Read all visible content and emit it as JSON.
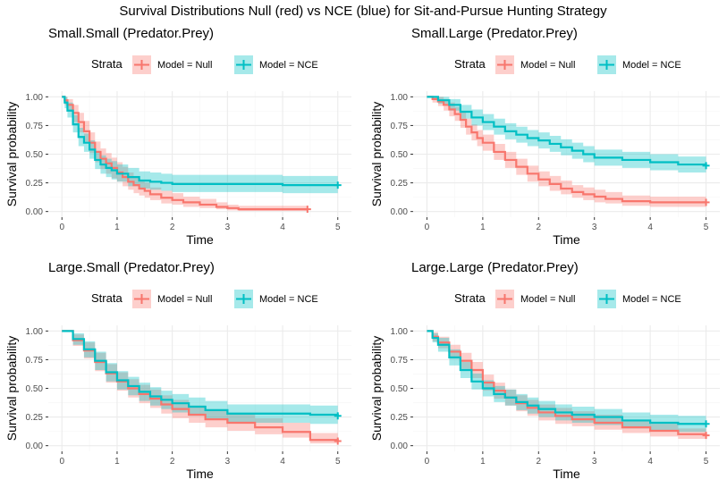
{
  "title": "Survival Distributions Null (red) vs NCE (blue) for Sit-and-Pursue Hunting Strategy",
  "colors": {
    "null": "#F8766D",
    "nce": "#00BFC4",
    "panel_bg": "#ffffff",
    "grid_major": "#EBEBEB",
    "grid_minor": "#F5F5F5"
  },
  "chart_data": [
    {
      "type": "line",
      "title": "Small.Small (Predator.Prey)",
      "xlabel": "Time",
      "ylabel": "Survival probability",
      "legend_title": "Strata",
      "legend_position": "top",
      "grid": true,
      "xlim": [
        0,
        5
      ],
      "ylim": [
        0,
        1
      ],
      "xticks": [
        "0",
        "1",
        "2",
        "3",
        "4",
        "5"
      ],
      "yticks": [
        "0.00",
        "0.25",
        "0.50",
        "0.75",
        "1.00"
      ],
      "series": [
        {
          "name": "Model = Null",
          "color": "#F8766D",
          "x": [
            0,
            0.05,
            0.1,
            0.2,
            0.3,
            0.4,
            0.5,
            0.6,
            0.7,
            0.8,
            0.9,
            1.0,
            1.1,
            1.2,
            1.3,
            1.4,
            1.5,
            1.6,
            1.8,
            2.0,
            2.2,
            2.5,
            2.8,
            3.0,
            3.2,
            3.5,
            4.0,
            4.45
          ],
          "y": [
            1.0,
            0.97,
            0.93,
            0.86,
            0.78,
            0.7,
            0.6,
            0.52,
            0.46,
            0.42,
            0.38,
            0.34,
            0.3,
            0.26,
            0.23,
            0.2,
            0.18,
            0.15,
            0.12,
            0.1,
            0.08,
            0.06,
            0.04,
            0.03,
            0.02,
            0.02,
            0.02,
            0.02
          ],
          "lower": [
            1.0,
            0.93,
            0.87,
            0.78,
            0.69,
            0.61,
            0.51,
            0.43,
            0.37,
            0.33,
            0.29,
            0.26,
            0.22,
            0.19,
            0.16,
            0.14,
            0.12,
            0.1,
            0.07,
            0.06,
            0.04,
            0.03,
            0.02,
            0.01,
            0.005,
            0.005,
            0.005,
            0.005
          ],
          "upper": [
            1.0,
            1.0,
            0.98,
            0.93,
            0.86,
            0.79,
            0.69,
            0.61,
            0.55,
            0.51,
            0.47,
            0.43,
            0.39,
            0.34,
            0.31,
            0.27,
            0.25,
            0.21,
            0.18,
            0.16,
            0.13,
            0.11,
            0.08,
            0.06,
            0.05,
            0.05,
            0.05,
            0.05
          ]
        },
        {
          "name": "Model = NCE",
          "color": "#00BFC4",
          "x": [
            0,
            0.05,
            0.1,
            0.2,
            0.3,
            0.4,
            0.5,
            0.6,
            0.7,
            0.8,
            0.9,
            1.0,
            1.2,
            1.4,
            1.6,
            1.8,
            2.0,
            3.0,
            4.0,
            5.0
          ],
          "y": [
            1.0,
            0.95,
            0.88,
            0.76,
            0.65,
            0.6,
            0.54,
            0.45,
            0.41,
            0.38,
            0.36,
            0.33,
            0.3,
            0.27,
            0.26,
            0.25,
            0.24,
            0.24,
            0.23,
            0.23
          ],
          "lower": [
            1.0,
            0.9,
            0.82,
            0.69,
            0.57,
            0.52,
            0.46,
            0.37,
            0.33,
            0.3,
            0.28,
            0.26,
            0.22,
            0.2,
            0.19,
            0.18,
            0.17,
            0.17,
            0.16,
            0.16
          ],
          "upper": [
            1.0,
            1.0,
            0.95,
            0.84,
            0.73,
            0.68,
            0.62,
            0.53,
            0.49,
            0.46,
            0.44,
            0.41,
            0.38,
            0.35,
            0.34,
            0.33,
            0.32,
            0.32,
            0.31,
            0.31
          ]
        }
      ]
    },
    {
      "type": "line",
      "title": "Small.Large (Predator.Prey)",
      "xlabel": "Time",
      "ylabel": "Survival probability",
      "legend_title": "Strata",
      "legend_position": "top",
      "grid": true,
      "xlim": [
        0,
        5
      ],
      "ylim": [
        0,
        1
      ],
      "xticks": [
        "0",
        "1",
        "2",
        "3",
        "4",
        "5"
      ],
      "yticks": [
        "0.00",
        "0.25",
        "0.50",
        "0.75",
        "1.00"
      ],
      "series": [
        {
          "name": "Model = Null",
          "color": "#F8766D",
          "x": [
            0,
            0.1,
            0.2,
            0.3,
            0.4,
            0.5,
            0.6,
            0.7,
            0.8,
            0.9,
            1.0,
            1.2,
            1.4,
            1.6,
            1.8,
            2.0,
            2.2,
            2.4,
            2.6,
            2.8,
            3.0,
            3.2,
            3.5,
            4.0,
            4.5,
            5.0
          ],
          "y": [
            1.0,
            0.98,
            0.96,
            0.93,
            0.89,
            0.85,
            0.8,
            0.74,
            0.69,
            0.64,
            0.6,
            0.52,
            0.45,
            0.39,
            0.33,
            0.28,
            0.24,
            0.2,
            0.17,
            0.15,
            0.13,
            0.11,
            0.09,
            0.08,
            0.08,
            0.08
          ],
          "lower": [
            1.0,
            0.95,
            0.92,
            0.88,
            0.83,
            0.79,
            0.73,
            0.67,
            0.62,
            0.57,
            0.53,
            0.45,
            0.38,
            0.32,
            0.26,
            0.22,
            0.18,
            0.15,
            0.12,
            0.1,
            0.08,
            0.07,
            0.05,
            0.04,
            0.04,
            0.04
          ],
          "upper": [
            1.0,
            1.0,
            1.0,
            0.98,
            0.95,
            0.91,
            0.87,
            0.81,
            0.76,
            0.71,
            0.67,
            0.59,
            0.52,
            0.46,
            0.4,
            0.35,
            0.31,
            0.27,
            0.23,
            0.21,
            0.19,
            0.17,
            0.14,
            0.13,
            0.13,
            0.13
          ]
        },
        {
          "name": "Model = NCE",
          "color": "#00BFC4",
          "x": [
            0,
            0.2,
            0.4,
            0.6,
            0.8,
            1.0,
            1.2,
            1.4,
            1.6,
            1.8,
            2.0,
            2.2,
            2.4,
            2.6,
            2.8,
            3.0,
            3.5,
            4.0,
            4.5,
            5.0
          ],
          "y": [
            1.0,
            0.97,
            0.93,
            0.87,
            0.82,
            0.78,
            0.74,
            0.7,
            0.67,
            0.64,
            0.62,
            0.59,
            0.56,
            0.53,
            0.5,
            0.47,
            0.45,
            0.43,
            0.41,
            0.4
          ],
          "lower": [
            1.0,
            0.94,
            0.88,
            0.81,
            0.75,
            0.71,
            0.67,
            0.63,
            0.6,
            0.57,
            0.55,
            0.52,
            0.49,
            0.46,
            0.43,
            0.4,
            0.38,
            0.36,
            0.34,
            0.33
          ],
          "upper": [
            1.0,
            1.0,
            0.98,
            0.93,
            0.89,
            0.85,
            0.81,
            0.77,
            0.74,
            0.71,
            0.69,
            0.66,
            0.63,
            0.6,
            0.57,
            0.54,
            0.52,
            0.5,
            0.48,
            0.47
          ]
        }
      ]
    },
    {
      "type": "line",
      "title": "Large.Small (Predator.Prey)",
      "xlabel": "Time",
      "ylabel": "Survival probability",
      "legend_title": "Strata",
      "legend_position": "top",
      "grid": true,
      "xlim": [
        0,
        5
      ],
      "ylim": [
        0,
        1
      ],
      "xticks": [
        "0",
        "1",
        "2",
        "3",
        "4",
        "5"
      ],
      "yticks": [
        "0.00",
        "0.25",
        "0.50",
        "0.75",
        "1.00"
      ],
      "series": [
        {
          "name": "Model = Null",
          "color": "#F8766D",
          "x": [
            0,
            0.2,
            0.4,
            0.6,
            0.8,
            1.0,
            1.2,
            1.4,
            1.6,
            1.8,
            2.0,
            2.3,
            2.6,
            3.0,
            3.5,
            4.0,
            4.5,
            5.0
          ],
          "y": [
            1.0,
            0.92,
            0.83,
            0.73,
            0.63,
            0.56,
            0.5,
            0.45,
            0.41,
            0.36,
            0.32,
            0.27,
            0.23,
            0.2,
            0.16,
            0.12,
            0.05,
            0.04
          ],
          "lower": [
            1.0,
            0.87,
            0.76,
            0.65,
            0.55,
            0.48,
            0.42,
            0.37,
            0.33,
            0.28,
            0.24,
            0.2,
            0.16,
            0.13,
            0.1,
            0.07,
            0.02,
            0.01
          ],
          "upper": [
            1.0,
            0.97,
            0.9,
            0.81,
            0.71,
            0.64,
            0.58,
            0.53,
            0.49,
            0.44,
            0.4,
            0.35,
            0.31,
            0.28,
            0.24,
            0.2,
            0.11,
            0.1
          ]
        },
        {
          "name": "Model = NCE",
          "color": "#00BFC4",
          "x": [
            0,
            0.2,
            0.4,
            0.6,
            0.8,
            1.0,
            1.2,
            1.4,
            1.6,
            1.8,
            2.0,
            2.3,
            2.6,
            3.0,
            3.5,
            4.0,
            4.5,
            5.0
          ],
          "y": [
            1.0,
            0.93,
            0.84,
            0.74,
            0.64,
            0.57,
            0.52,
            0.47,
            0.43,
            0.4,
            0.37,
            0.34,
            0.31,
            0.28,
            0.28,
            0.28,
            0.27,
            0.26
          ],
          "lower": [
            1.0,
            0.88,
            0.77,
            0.66,
            0.56,
            0.49,
            0.44,
            0.39,
            0.35,
            0.32,
            0.29,
            0.26,
            0.23,
            0.2,
            0.2,
            0.2,
            0.19,
            0.18
          ],
          "upper": [
            1.0,
            0.98,
            0.91,
            0.82,
            0.72,
            0.65,
            0.6,
            0.55,
            0.51,
            0.48,
            0.45,
            0.42,
            0.39,
            0.36,
            0.36,
            0.36,
            0.35,
            0.34
          ]
        }
      ]
    },
    {
      "type": "line",
      "title": "Large.Large (Predator.Prey)",
      "xlabel": "Time",
      "ylabel": "Survival probability",
      "legend_title": "Strata",
      "legend_position": "top",
      "grid": true,
      "xlim": [
        0,
        5
      ],
      "ylim": [
        0,
        1
      ],
      "xticks": [
        "0",
        "1",
        "2",
        "3",
        "4",
        "5"
      ],
      "yticks": [
        "0.00",
        "0.25",
        "0.50",
        "0.75",
        "1.00"
      ],
      "series": [
        {
          "name": "Model = Null",
          "color": "#F8766D",
          "x": [
            0,
            0.1,
            0.2,
            0.4,
            0.6,
            0.8,
            1.0,
            1.2,
            1.4,
            1.6,
            1.8,
            2.0,
            2.3,
            2.6,
            3.0,
            3.5,
            4.0,
            4.5,
            5.0
          ],
          "y": [
            1.0,
            0.95,
            0.9,
            0.82,
            0.74,
            0.66,
            0.55,
            0.48,
            0.42,
            0.37,
            0.33,
            0.29,
            0.26,
            0.23,
            0.2,
            0.16,
            0.13,
            0.1,
            0.09
          ],
          "lower": [
            1.0,
            0.91,
            0.85,
            0.76,
            0.67,
            0.59,
            0.48,
            0.41,
            0.35,
            0.3,
            0.26,
            0.22,
            0.19,
            0.17,
            0.14,
            0.11,
            0.08,
            0.06,
            0.05
          ],
          "upper": [
            1.0,
            0.99,
            0.95,
            0.88,
            0.81,
            0.73,
            0.62,
            0.55,
            0.49,
            0.44,
            0.4,
            0.36,
            0.33,
            0.3,
            0.27,
            0.22,
            0.19,
            0.15,
            0.14
          ]
        },
        {
          "name": "Model = NCE",
          "color": "#00BFC4",
          "x": [
            0,
            0.1,
            0.2,
            0.4,
            0.6,
            0.8,
            1.0,
            1.2,
            1.4,
            1.6,
            1.8,
            2.0,
            2.3,
            2.6,
            3.0,
            3.5,
            4.0,
            4.5,
            5.0
          ],
          "y": [
            1.0,
            0.94,
            0.88,
            0.77,
            0.66,
            0.56,
            0.5,
            0.45,
            0.42,
            0.38,
            0.35,
            0.32,
            0.29,
            0.27,
            0.25,
            0.22,
            0.2,
            0.19,
            0.19
          ],
          "lower": [
            1.0,
            0.9,
            0.82,
            0.7,
            0.59,
            0.49,
            0.43,
            0.38,
            0.35,
            0.31,
            0.28,
            0.25,
            0.22,
            0.2,
            0.18,
            0.15,
            0.13,
            0.12,
            0.12
          ],
          "upper": [
            1.0,
            0.98,
            0.94,
            0.84,
            0.73,
            0.63,
            0.57,
            0.52,
            0.49,
            0.45,
            0.42,
            0.39,
            0.36,
            0.34,
            0.32,
            0.29,
            0.27,
            0.26,
            0.26
          ]
        }
      ]
    }
  ]
}
